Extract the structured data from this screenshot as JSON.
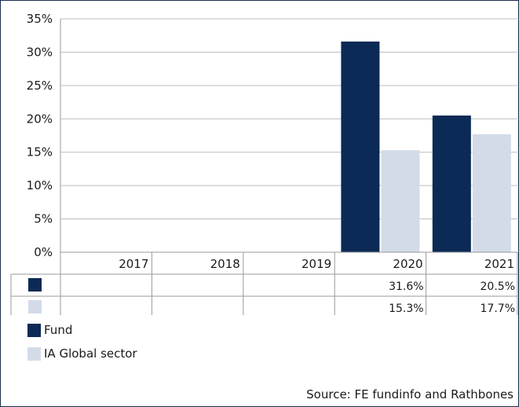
{
  "chart_data": {
    "type": "bar",
    "categories": [
      "2017",
      "2018",
      "2019",
      "2020",
      "2021"
    ],
    "series": [
      {
        "name": "Fund",
        "color": "#0b2a55",
        "values": [
          null,
          null,
          null,
          31.6,
          20.5
        ],
        "labels": [
          "",
          "",
          "",
          "31.6%",
          "20.5%"
        ]
      },
      {
        "name": "IA Global sector",
        "color": "#d3dbe8",
        "values": [
          null,
          null,
          null,
          15.3,
          17.7
        ],
        "labels": [
          "",
          "",
          "",
          "15.3%",
          "17.7%"
        ]
      }
    ],
    "ylim": [
      0,
      35
    ],
    "yticks": [
      "0%",
      "5%",
      "10%",
      "15%",
      "20%",
      "25%",
      "30%",
      "35%"
    ],
    "grid": true,
    "legend_placement": "bottom-left",
    "data_table": true
  },
  "legend": {
    "fund": "Fund",
    "sector": "IA Global sector"
  },
  "source": "Source: FE fundinfo and Rathbones"
}
